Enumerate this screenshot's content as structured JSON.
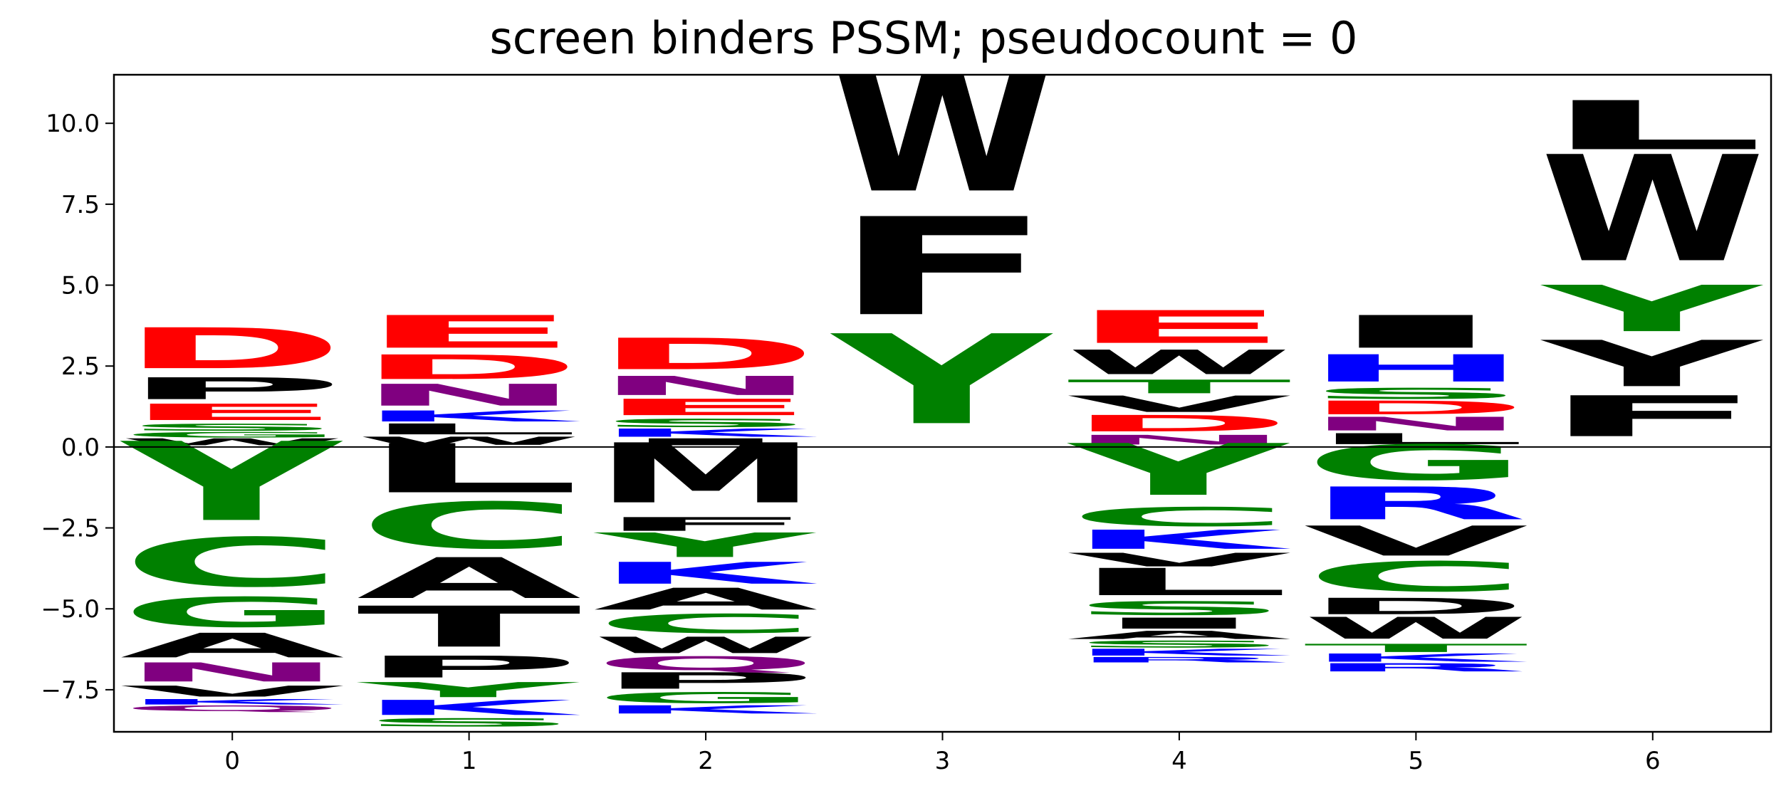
{
  "chart_data": {
    "type": "logo",
    "title": "screen binders PSSM; pseudocount = 0",
    "xlabel": "",
    "ylabel": "",
    "ylim": [
      -8.8,
      11.5
    ],
    "xlim": [
      -0.5,
      6.5
    ],
    "x_ticks": [
      0,
      1,
      2,
      3,
      4,
      5,
      6
    ],
    "y_ticks": [
      -7.5,
      -5.0,
      -2.5,
      0.0,
      2.5,
      5.0,
      7.5,
      10.0
    ],
    "y_tick_labels": [
      "−7.5",
      "−5.0",
      "−2.5",
      "0.0",
      "2.5",
      "5.0",
      "7.5",
      "10.0"
    ],
    "grid": false,
    "baseline": 0,
    "color_scheme": {
      "acidic": "#ff0000",
      "basic": "#0000ff",
      "polar": "#008000",
      "amide": "#800080",
      "hydrophobic": "#000000"
    },
    "positions": [
      {
        "x": 0,
        "positive": [
          {
            "letter": "W",
            "value": 0.25,
            "color": "#000000"
          },
          {
            "letter": "G",
            "value": 0.2,
            "color": "#008000"
          },
          {
            "letter": "S",
            "value": 0.25,
            "color": "#008000"
          },
          {
            "letter": "E",
            "value": 0.6,
            "color": "#ff0000"
          },
          {
            "letter": "P",
            "value": 0.8,
            "color": "#000000"
          },
          {
            "letter": "D",
            "value": 1.5,
            "color": "#ff0000"
          }
        ],
        "negative": [
          {
            "letter": "Y",
            "value": 2.9,
            "color": "#008000"
          },
          {
            "letter": "C",
            "value": 1.8,
            "color": "#008000"
          },
          {
            "letter": "G",
            "value": 1.1,
            "color": "#008000"
          },
          {
            "letter": "A",
            "value": 0.9,
            "color": "#000000"
          },
          {
            "letter": "N",
            "value": 0.7,
            "color": "#800080"
          },
          {
            "letter": "V",
            "value": 0.4,
            "color": "#000000"
          },
          {
            "letter": "K",
            "value": 0.2,
            "color": "#0000ff"
          },
          {
            "letter": "Q",
            "value": 0.2,
            "color": "#800080"
          }
        ]
      },
      {
        "x": 1,
        "positive": [
          {
            "letter": "W",
            "value": 0.3,
            "color": "#000000"
          },
          {
            "letter": "L",
            "value": 0.4,
            "color": "#000000"
          },
          {
            "letter": "K",
            "value": 0.4,
            "color": "#0000ff"
          },
          {
            "letter": "N",
            "value": 0.8,
            "color": "#800080"
          },
          {
            "letter": "D",
            "value": 0.9,
            "color": "#ff0000"
          },
          {
            "letter": "E",
            "value": 1.2,
            "color": "#ff0000"
          }
        ],
        "negative": [
          {
            "letter": "L",
            "value": 1.8,
            "color": "#000000"
          },
          {
            "letter": "C",
            "value": 1.7,
            "color": "#008000"
          },
          {
            "letter": "A",
            "value": 1.5,
            "color": "#000000"
          },
          {
            "letter": "T",
            "value": 1.5,
            "color": "#000000"
          },
          {
            "letter": "P",
            "value": 0.8,
            "color": "#000000"
          },
          {
            "letter": "Y",
            "value": 0.55,
            "color": "#008000"
          },
          {
            "letter": "K",
            "value": 0.55,
            "color": "#0000ff"
          },
          {
            "letter": "S",
            "value": 0.3,
            "color": "#008000"
          }
        ]
      },
      {
        "x": 2,
        "positive": [
          {
            "letter": "I",
            "value": 0.25,
            "color": "#000000"
          },
          {
            "letter": "K",
            "value": 0.3,
            "color": "#0000ff"
          },
          {
            "letter": "S",
            "value": 0.3,
            "color": "#008000"
          },
          {
            "letter": "E",
            "value": 0.6,
            "color": "#ff0000"
          },
          {
            "letter": "N",
            "value": 0.7,
            "color": "#800080"
          },
          {
            "letter": "D",
            "value": 1.15,
            "color": "#ff0000"
          }
        ],
        "negative": [
          {
            "letter": "M",
            "value": 2.2,
            "color": "#000000"
          },
          {
            "letter": "F",
            "value": 0.5,
            "color": "#000000"
          },
          {
            "letter": "Y",
            "value": 0.9,
            "color": "#008000"
          },
          {
            "letter": "K",
            "value": 0.8,
            "color": "#0000ff"
          },
          {
            "letter": "A",
            "value": 0.8,
            "color": "#000000"
          },
          {
            "letter": "C",
            "value": 0.7,
            "color": "#008000"
          },
          {
            "letter": "W",
            "value": 0.6,
            "color": "#000000"
          },
          {
            "letter": "Q",
            "value": 0.5,
            "color": "#800080"
          },
          {
            "letter": "P",
            "value": 0.6,
            "color": "#000000"
          },
          {
            "letter": "G",
            "value": 0.4,
            "color": "#008000"
          },
          {
            "letter": "K",
            "value": 0.3,
            "color": "#0000ff"
          }
        ]
      },
      {
        "x": 3,
        "positive": [
          {
            "letter": "Y",
            "value": 3.3,
            "color": "#008000"
          },
          {
            "letter": "F",
            "value": 3.6,
            "color": "#000000"
          },
          {
            "letter": "W",
            "value": 4.6,
            "color": "#000000"
          }
        ],
        "negative": []
      },
      {
        "x": 4,
        "positive": [
          {
            "letter": "N",
            "value": 0.35,
            "color": "#800080"
          },
          {
            "letter": "D",
            "value": 0.6,
            "color": "#ff0000"
          },
          {
            "letter": "V",
            "value": 0.6,
            "color": "#000000"
          },
          {
            "letter": "T",
            "value": 0.5,
            "color": "#008000"
          },
          {
            "letter": "W",
            "value": 0.9,
            "color": "#000000"
          },
          {
            "letter": "E",
            "value": 1.2,
            "color": "#ff0000"
          }
        ],
        "negative": [
          {
            "letter": "Y",
            "value": 1.9,
            "color": "#008000"
          },
          {
            "letter": "C",
            "value": 0.7,
            "color": "#008000"
          },
          {
            "letter": "K",
            "value": 0.7,
            "color": "#0000ff"
          },
          {
            "letter": "V",
            "value": 0.5,
            "color": "#000000"
          },
          {
            "letter": "L",
            "value": 1.0,
            "color": "#000000"
          },
          {
            "letter": "S",
            "value": 0.5,
            "color": "#008000"
          },
          {
            "letter": "I",
            "value": 0.4,
            "color": "#000000"
          },
          {
            "letter": "A",
            "value": 0.3,
            "color": "#000000"
          },
          {
            "letter": "S",
            "value": 0.25,
            "color": "#008000"
          },
          {
            "letter": "K",
            "value": 0.25,
            "color": "#0000ff"
          },
          {
            "letter": "R",
            "value": 0.2,
            "color": "#0000ff"
          }
        ]
      },
      {
        "x": 5,
        "positive": [
          {
            "letter": "L",
            "value": 0.4,
            "color": "#000000"
          },
          {
            "letter": "N",
            "value": 0.5,
            "color": "#800080"
          },
          {
            "letter": "D",
            "value": 0.5,
            "color": "#ff0000"
          },
          {
            "letter": "S",
            "value": 0.4,
            "color": "#008000"
          },
          {
            "letter": "H",
            "value": 1.0,
            "color": "#0000ff"
          },
          {
            "letter": "I",
            "value": 1.2,
            "color": "#000000"
          }
        ],
        "negative": [
          {
            "letter": "G",
            "value": 1.3,
            "color": "#008000"
          },
          {
            "letter": "R",
            "value": 1.2,
            "color": "#0000ff"
          },
          {
            "letter": "V",
            "value": 1.1,
            "color": "#000000"
          },
          {
            "letter": "C",
            "value": 1.1,
            "color": "#008000"
          },
          {
            "letter": "D",
            "value": 0.6,
            "color": "#000000"
          },
          {
            "letter": "W",
            "value": 0.8,
            "color": "#000000"
          },
          {
            "letter": "T",
            "value": 0.3,
            "color": "#008000"
          },
          {
            "letter": "K",
            "value": 0.3,
            "color": "#0000ff"
          },
          {
            "letter": "R",
            "value": 0.3,
            "color": "#0000ff"
          }
        ]
      },
      {
        "x": 6,
        "positive": [
          {
            "letter": "F",
            "value": 1.5,
            "color": "#000000"
          },
          {
            "letter": "Y",
            "value": 1.7,
            "color": "#000000"
          },
          {
            "letter": "Y",
            "value": 1.7,
            "color": "#008000"
          },
          {
            "letter": "W",
            "value": 3.9,
            "color": "#000000"
          },
          {
            "letter": "L",
            "value": 1.8,
            "color": "#000000"
          }
        ],
        "negative": []
      }
    ]
  }
}
